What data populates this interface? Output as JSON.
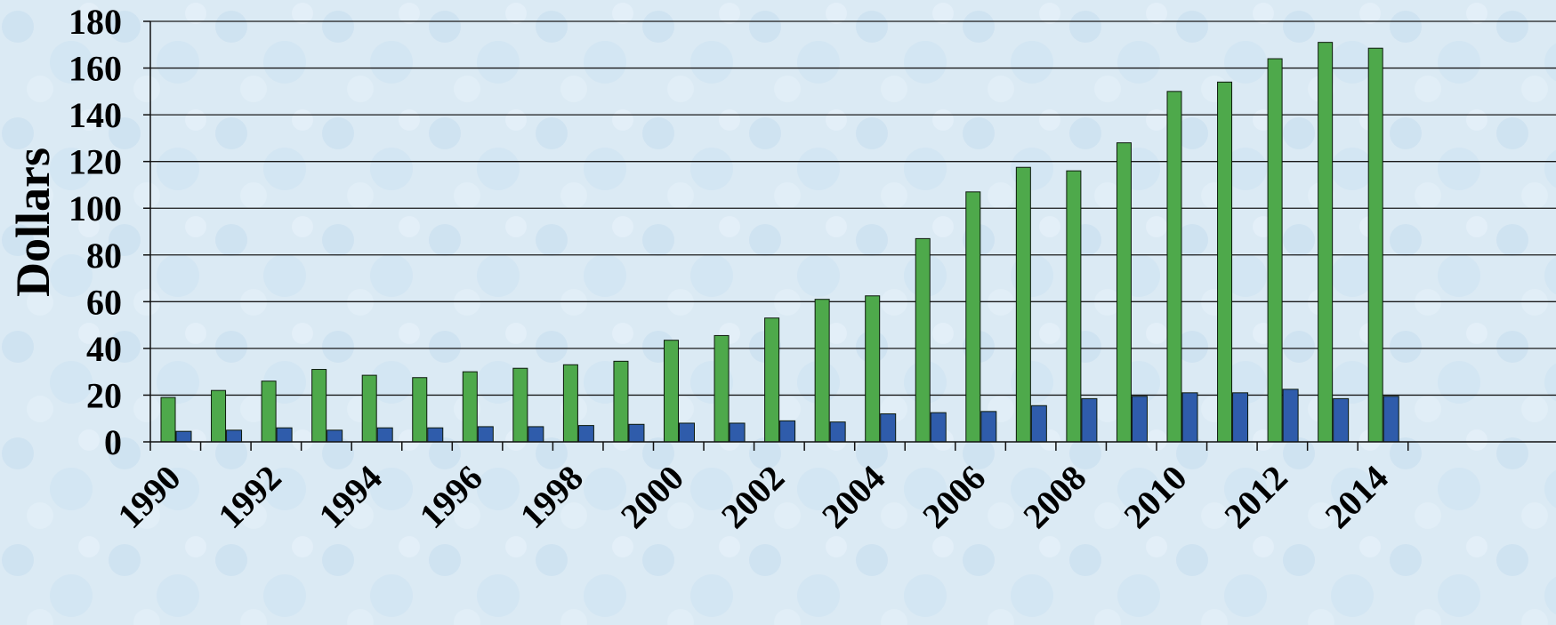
{
  "chart_data": {
    "type": "bar",
    "title": "",
    "xlabel": "",
    "ylabel": "Dollars",
    "ylim": [
      0,
      180
    ],
    "yticks": [
      0,
      20,
      40,
      60,
      80,
      100,
      120,
      140,
      160,
      180
    ],
    "grid": true,
    "legend": "none",
    "categories": [
      "1990",
      "1991",
      "1992",
      "1993",
      "1994",
      "1995",
      "1996",
      "1997",
      "1998",
      "1999",
      "2000",
      "2001",
      "2002",
      "2003",
      "2004",
      "2005",
      "2006",
      "2007",
      "2008",
      "2009",
      "2010",
      "2011",
      "2012",
      "2013",
      "2014"
    ],
    "x_tick_labels": [
      "1990",
      "1992",
      "1994",
      "1996",
      "1998",
      "2000",
      "2002",
      "2004",
      "2006",
      "2008",
      "2010",
      "2012",
      "2014"
    ],
    "series": [
      {
        "color": "#4ea94b",
        "values": [
          19,
          22,
          26,
          31,
          28.5,
          27.5,
          30,
          31.5,
          33,
          34.5,
          43.5,
          45.5,
          53,
          61,
          62.5,
          87,
          107,
          117.5,
          116,
          128,
          150,
          154,
          164,
          171,
          168.5
        ]
      },
      {
        "color": "#2f5cab",
        "values": [
          4.5,
          5,
          6,
          5,
          6,
          6,
          6.5,
          6.5,
          7,
          7.5,
          8,
          8,
          9,
          8.5,
          12,
          12.5,
          13,
          15.5,
          18.5,
          19.5,
          21,
          21,
          22.5,
          18.5,
          19.5
        ]
      }
    ]
  }
}
